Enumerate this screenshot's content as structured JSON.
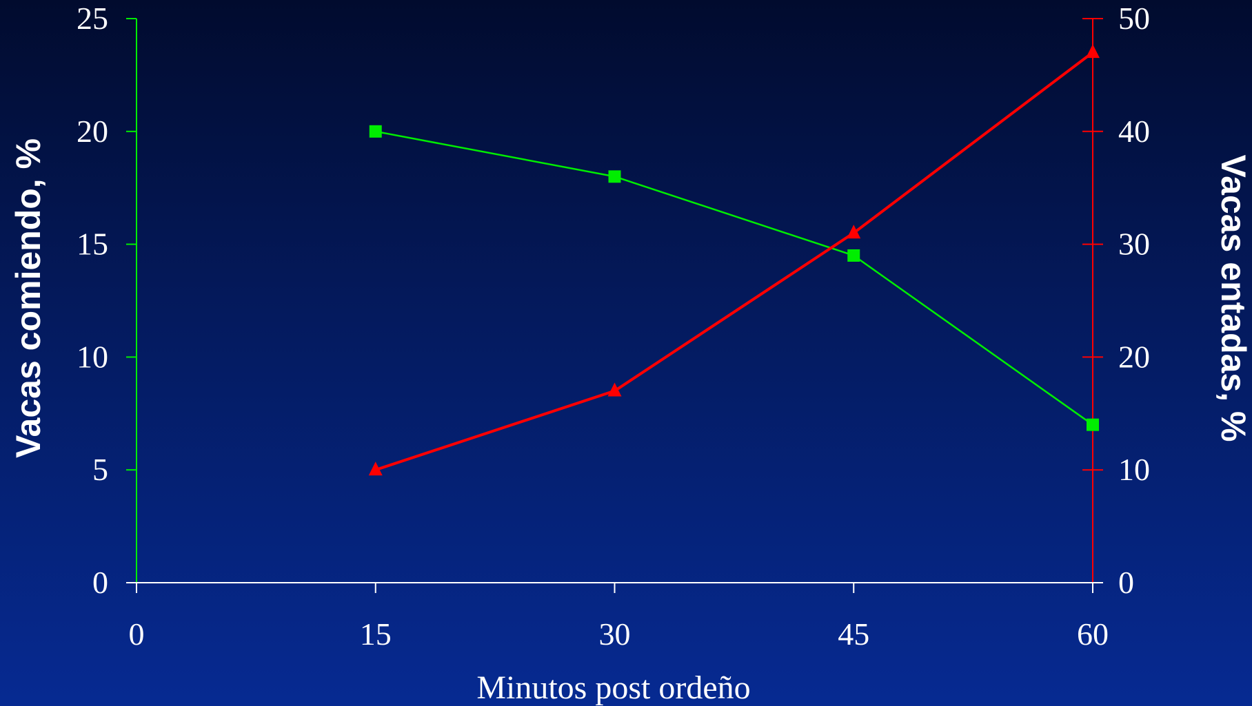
{
  "chart_data": {
    "type": "line",
    "title": "",
    "xlabel": "Minutos post ordeño",
    "ylabel_left": "Vacas comiendo, %",
    "ylabel_right": "Vacas entadas, %",
    "x_ticks": [
      0,
      15,
      30,
      45,
      60
    ],
    "xlim": [
      0,
      60
    ],
    "ylim_left": [
      0,
      25
    ],
    "ylim_right": [
      0,
      50
    ],
    "y_ticks_left": [
      0,
      5,
      10,
      15,
      20,
      25
    ],
    "y_ticks_right": [
      0,
      10,
      20,
      30,
      40,
      50
    ],
    "grid": false,
    "legend": "none",
    "series": [
      {
        "axis": "left",
        "marker": "square",
        "color": "#00ee00",
        "x": [
          15,
          30,
          45,
          60
        ],
        "values": [
          20,
          18,
          14.5,
          7
        ]
      },
      {
        "axis": "right",
        "marker": "triangle",
        "color": "#ff0000",
        "x": [
          15,
          30,
          45,
          60
        ],
        "values": [
          10,
          17,
          31,
          47
        ]
      }
    ]
  },
  "colors": {
    "left_axis": "#00ee00",
    "right_axis": "#ff0000",
    "x_axis": "#ffffff",
    "text": "#ffffff"
  }
}
